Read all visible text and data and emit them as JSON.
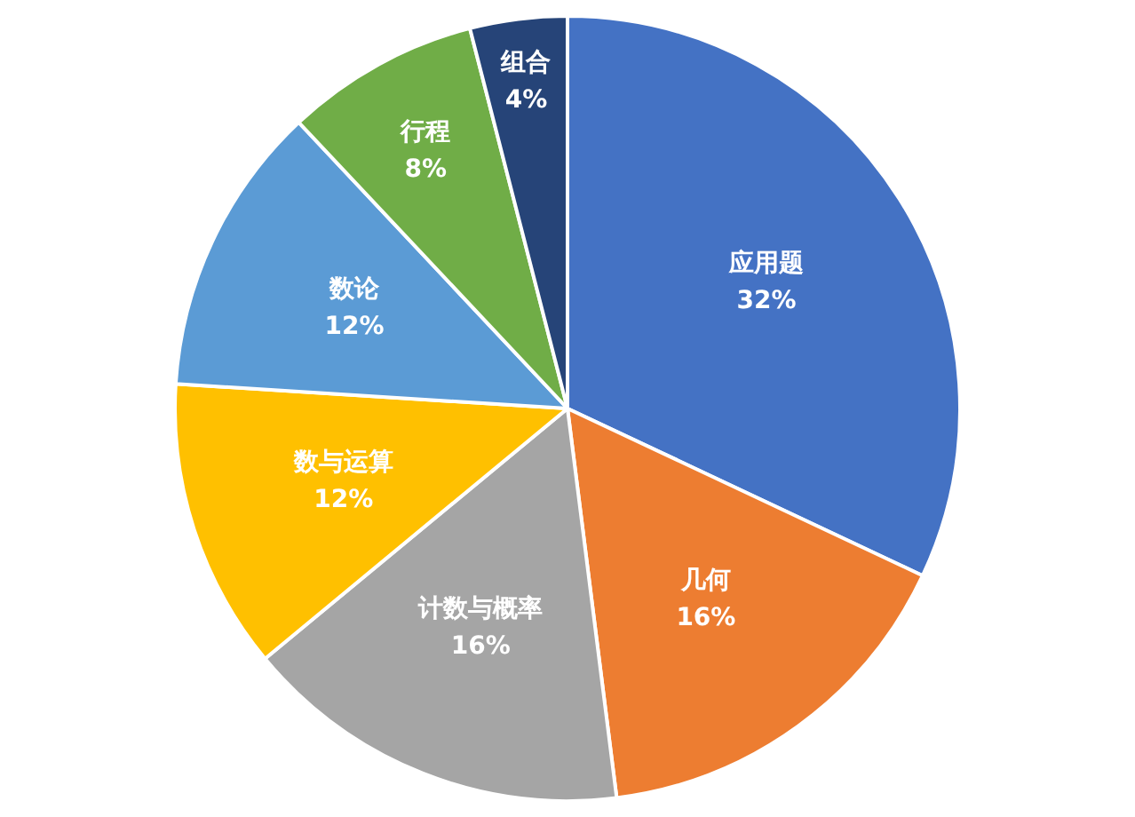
{
  "chart_data": {
    "type": "pie",
    "categories": [
      "应用题",
      "几何",
      "计数与概率",
      "数与运算",
      "数论",
      "行程",
      "组合"
    ],
    "values": [
      32,
      16,
      16,
      12,
      12,
      8,
      4
    ],
    "colors": [
      "#4472c4",
      "#ed7d31",
      "#a5a5a5",
      "#ffc000",
      "#5b9bd5",
      "#70ad47",
      "#264478"
    ],
    "value_labels": [
      "32%",
      "16%",
      "16%",
      "12%",
      "12%",
      "8%",
      "4%"
    ],
    "legend": false
  }
}
